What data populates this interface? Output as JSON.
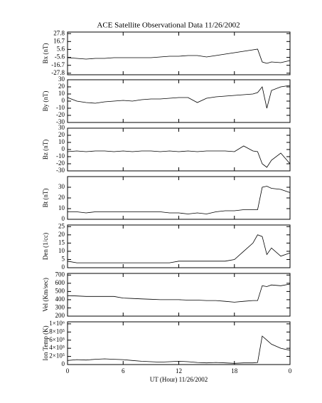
{
  "chart_data": [
    {
      "type": "line",
      "title": "ACE Satellite Observational Data   11/26/2002",
      "ylabel": "Bx (nT)",
      "x": [
        0,
        1,
        2,
        3,
        4,
        5,
        6,
        7,
        8,
        9,
        10,
        11,
        12,
        13,
        14,
        15,
        16,
        17,
        18,
        19,
        20,
        20.5,
        21,
        21.5,
        22,
        23,
        24
      ],
      "values": [
        -6,
        -7,
        -8,
        -7,
        -7,
        -6,
        -6,
        -6,
        -6,
        -6,
        -5,
        -4,
        -4,
        -3,
        -3,
        -5,
        -3,
        -1,
        1,
        3,
        5,
        6,
        -12,
        -14,
        -12,
        -13,
        -10
      ],
      "xlim": [
        0,
        24
      ],
      "ylim": [
        -30,
        30
      ],
      "yticks": [
        27.8,
        16.7,
        5.6,
        -5.6,
        -16.7,
        -27.8
      ]
    },
    {
      "type": "line",
      "ylabel": "By (nT)",
      "x": [
        0,
        1,
        2,
        3,
        4,
        5,
        6,
        7,
        8,
        9,
        10,
        11,
        12,
        13,
        14,
        15,
        16,
        17,
        18,
        19,
        20,
        20.5,
        21,
        21.5,
        22,
        23,
        24
      ],
      "values": [
        5,
        0,
        -2,
        -3,
        -1,
        0,
        1,
        0,
        2,
        3,
        3,
        4,
        5,
        5,
        -2,
        4,
        6,
        7,
        8,
        9,
        10,
        12,
        20,
        -10,
        15,
        20,
        22
      ],
      "xlim": [
        0,
        24
      ],
      "ylim": [
        -30,
        30
      ],
      "yticks": [
        30,
        20,
        10,
        0,
        -10,
        -20,
        -30
      ]
    },
    {
      "type": "line",
      "ylabel": "Bz (nT)",
      "x": [
        0,
        1,
        2,
        3,
        4,
        5,
        6,
        7,
        8,
        9,
        10,
        11,
        12,
        13,
        14,
        15,
        16,
        17,
        18,
        19,
        20,
        20.5,
        21,
        21.5,
        22,
        23,
        24
      ],
      "values": [
        -3,
        -2,
        -3,
        -2,
        -2,
        -3,
        -2,
        -3,
        -2,
        -2,
        -3,
        -2,
        -3,
        -2,
        -3,
        -2,
        -2,
        -2,
        -3,
        5,
        -2,
        -3,
        -20,
        -25,
        -15,
        -5,
        -20
      ],
      "xlim": [
        0,
        24
      ],
      "ylim": [
        -30,
        30
      ],
      "yticks": [
        30,
        20,
        10,
        0,
        -10,
        -20,
        -30
      ]
    },
    {
      "type": "line",
      "ylabel": "Bt (nT)",
      "x": [
        0,
        1,
        2,
        3,
        4,
        5,
        6,
        7,
        8,
        9,
        10,
        11,
        12,
        13,
        14,
        15,
        16,
        17,
        18,
        19,
        20,
        20.5,
        21,
        21.5,
        22,
        23,
        24
      ],
      "values": [
        7,
        7,
        6,
        7,
        7,
        7,
        7,
        7,
        7,
        7,
        7,
        6,
        6,
        5,
        6,
        5,
        7,
        8,
        8,
        9,
        9,
        9,
        30,
        31,
        29,
        28,
        25
      ],
      "xlim": [
        0,
        24
      ],
      "ylim": [
        0,
        40
      ],
      "yticks": [
        30,
        20,
        10,
        0
      ]
    },
    {
      "type": "line",
      "ylabel": "Den (1/cc)",
      "x": [
        0,
        1,
        2,
        3,
        4,
        5,
        6,
        7,
        8,
        9,
        10,
        11,
        12,
        13,
        14,
        15,
        16,
        17,
        18,
        19,
        20,
        20.5,
        21,
        21.5,
        22,
        23,
        24
      ],
      "values": [
        4,
        3,
        3,
        3,
        3,
        3,
        3,
        3,
        3,
        3,
        3,
        3,
        4,
        4,
        4,
        4,
        4,
        4,
        5,
        10,
        15,
        20,
        19,
        8,
        12,
        7,
        9
      ],
      "xlim": [
        0,
        24
      ],
      "ylim": [
        0,
        26
      ],
      "yticks": [
        25,
        20,
        15,
        10,
        5,
        0
      ]
    },
    {
      "type": "line",
      "ylabel": "Vel (Km/sec)",
      "x": [
        0,
        1,
        2,
        3,
        4,
        5,
        6,
        7,
        8,
        9,
        10,
        11,
        12,
        13,
        14,
        15,
        16,
        17,
        18,
        19,
        20,
        20.5,
        21,
        21.5,
        22,
        23,
        24
      ],
      "values": [
        450,
        445,
        440,
        440,
        440,
        440,
        420,
        415,
        410,
        405,
        400,
        400,
        400,
        395,
        395,
        390,
        390,
        380,
        370,
        380,
        390,
        390,
        570,
        560,
        580,
        570,
        590
      ],
      "xlim": [
        0,
        24
      ],
      "ylim": [
        200,
        720
      ],
      "yticks": [
        700,
        600,
        500,
        400,
        300,
        200
      ]
    },
    {
      "type": "line",
      "ylabel": "Ion Temp (K)",
      "xlabel": "UT (Hour)  11/26/2002",
      "x": [
        0,
        1,
        2,
        3,
        4,
        5,
        6,
        7,
        8,
        9,
        10,
        11,
        12,
        13,
        14,
        15,
        16,
        17,
        18,
        19,
        20,
        20.5,
        21,
        21.5,
        22,
        23,
        24
      ],
      "values": [
        100000,
        120000,
        110000,
        130000,
        140000,
        130000,
        120000,
        100000,
        80000,
        70000,
        60000,
        70000,
        80000,
        70000,
        50000,
        40000,
        50000,
        40000,
        30000,
        40000,
        40000,
        50000,
        700000,
        600000,
        500000,
        400000,
        350000
      ],
      "xlim": [
        0,
        24
      ],
      "ylim": [
        0,
        1050000
      ],
      "yticks": [
        {
          "value": 1000000,
          "label": "1×10⁶"
        },
        {
          "value": 800000,
          "label": "8×10⁵"
        },
        {
          "value": 600000,
          "label": "6×10⁵"
        },
        {
          "value": 400000,
          "label": "4×10⁵"
        },
        {
          "value": 200000,
          "label": "2×10⁵"
        },
        0
      ],
      "xticks": [
        0,
        6,
        12,
        18,
        {
          "value": 24,
          "label": "0"
        }
      ]
    }
  ]
}
